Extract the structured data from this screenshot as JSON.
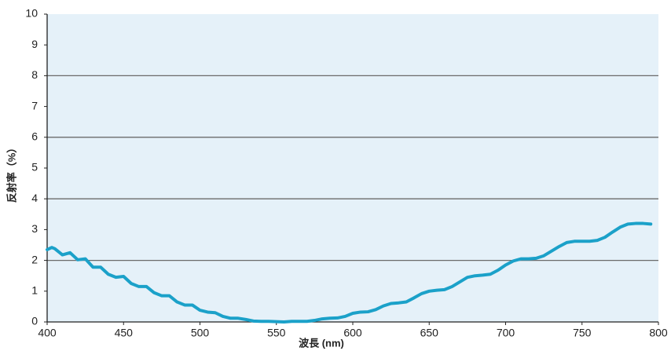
{
  "chart_data": {
    "type": "line",
    "x_label": "波長 (nm)",
    "y_label": "反射率（%）",
    "xlim": [
      400,
      800
    ],
    "xticks": [
      400,
      450,
      500,
      550,
      600,
      650,
      700,
      750,
      800
    ],
    "ylim": [
      0,
      10
    ],
    "yticks": [
      0,
      1,
      2,
      3,
      4,
      5,
      6,
      7,
      8,
      9,
      10
    ],
    "ygrid": [
      2,
      4,
      6,
      8
    ],
    "background": "#e5f1f9",
    "series": [
      {
        "color": "#1ba1c9",
        "x": [
          400,
          403,
          405,
          410,
          415,
          420,
          425,
          430,
          435,
          440,
          445,
          450,
          455,
          460,
          465,
          470,
          475,
          480,
          485,
          490,
          495,
          500,
          505,
          510,
          515,
          520,
          525,
          530,
          535,
          540,
          545,
          550,
          555,
          560,
          565,
          570,
          575,
          580,
          585,
          590,
          595,
          600,
          605,
          610,
          615,
          620,
          625,
          630,
          635,
          640,
          645,
          650,
          655,
          660,
          665,
          670,
          675,
          680,
          685,
          690,
          695,
          700,
          705,
          710,
          715,
          720,
          725,
          730,
          735,
          740,
          745,
          750,
          755,
          760,
          765,
          770,
          775,
          780,
          785,
          790,
          795
        ],
        "values": [
          2.35,
          2.42,
          2.38,
          2.18,
          2.25,
          2.02,
          2.05,
          1.78,
          1.78,
          1.55,
          1.45,
          1.48,
          1.25,
          1.15,
          1.15,
          0.95,
          0.85,
          0.85,
          0.65,
          0.55,
          0.55,
          0.38,
          0.32,
          0.3,
          0.18,
          0.12,
          0.12,
          0.08,
          0.03,
          0.02,
          0.02,
          0.01,
          0,
          0.02,
          0.02,
          0.02,
          0.05,
          0.1,
          0.12,
          0.13,
          0.18,
          0.28,
          0.32,
          0.33,
          0.4,
          0.52,
          0.6,
          0.62,
          0.65,
          0.78,
          0.92,
          1.0,
          1.03,
          1.05,
          1.15,
          1.3,
          1.45,
          1.5,
          1.52,
          1.55,
          1.68,
          1.85,
          1.98,
          2.05,
          2.05,
          2.07,
          2.15,
          2.3,
          2.45,
          2.58,
          2.62,
          2.62,
          2.62,
          2.65,
          2.75,
          2.92,
          3.08,
          3.18,
          3.2,
          3.2,
          3.18
        ]
      }
    ]
  }
}
